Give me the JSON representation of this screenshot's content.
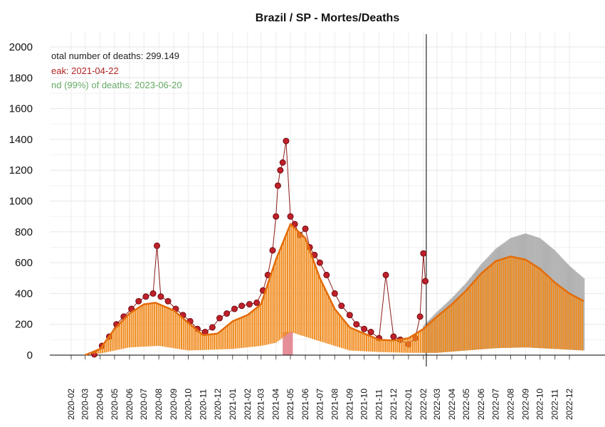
{
  "chart_data": {
    "type": "line",
    "title": "Brazil / SP - Mortes/Deaths",
    "xlabel": "",
    "ylabel": "",
    "ylim": [
      0,
      2000
    ],
    "yticks": [
      "0",
      "200",
      "400",
      "600",
      "800",
      "1000",
      "1200",
      "1400",
      "1600",
      "1800",
      "2000"
    ],
    "xticks": [
      "2020-02",
      "2020-03",
      "2020-04",
      "2020-05",
      "2020-06",
      "2020-07",
      "2020-08",
      "2020-09",
      "2020-10",
      "2020-11",
      "2020-12",
      "2021-01",
      "2021-02",
      "2021-03",
      "2021-04",
      "2021-05",
      "2021-06",
      "2021-07",
      "2021-08",
      "2021-09",
      "2021-10",
      "2021-11",
      "2021-12",
      "2022-01",
      "2022-02",
      "2022-03",
      "2022-04",
      "2022-05",
      "2022-06",
      "2022-07",
      "2022-08",
      "2022-09",
      "2022-10",
      "2022-11",
      "2022-12"
    ],
    "grid": true,
    "annotations": {
      "total": "otal number of deaths: 299.149",
      "peak": "eak: 2021-04-22",
      "end": "nd (99%) of deaths: 2023-06-20"
    },
    "today_marker": "2022-02-07",
    "peak_band": [
      "2021-04-15",
      "2021-05-06"
    ],
    "fitted_curve": {
      "x": [
        "2020-03-01",
        "2020-04-01",
        "2020-05-01",
        "2020-06-01",
        "2020-07-01",
        "2020-07-25",
        "2020-09-01",
        "2020-10-01",
        "2020-11-01",
        "2020-12-01",
        "2021-01-01",
        "2021-02-01",
        "2021-03-01",
        "2021-04-01",
        "2021-05-01",
        "2021-06-01",
        "2021-07-01",
        "2021-08-01",
        "2021-09-01",
        "2021-10-01",
        "2021-11-01",
        "2021-12-01",
        "2022-01-01",
        "2022-02-01",
        "2022-03-01",
        "2022-04-01",
        "2022-05-01",
        "2022-06-01",
        "2022-07-01",
        "2022-08-01",
        "2022-09-01",
        "2022-10-01",
        "2022-11-01",
        "2022-12-01",
        "2022-12-31"
      ],
      "y": [
        0,
        40,
        170,
        270,
        330,
        340,
        290,
        210,
        130,
        140,
        220,
        260,
        330,
        620,
        850,
        760,
        500,
        300,
        180,
        140,
        100,
        95,
        110,
        170,
        250,
        330,
        420,
        530,
        610,
        640,
        620,
        560,
        470,
        400,
        350
      ]
    },
    "band_upper": {
      "x": [
        "2022-02-01",
        "2022-03-01",
        "2022-04-01",
        "2022-05-01",
        "2022-06-01",
        "2022-07-01",
        "2022-08-01",
        "2022-09-01",
        "2022-10-01",
        "2022-11-01",
        "2022-12-01",
        "2022-12-31"
      ],
      "y": [
        190,
        280,
        370,
        470,
        590,
        690,
        760,
        790,
        760,
        680,
        580,
        500
      ]
    },
    "band_lower": {
      "x": [
        "2020-04-01",
        "2020-06-01",
        "2020-08-01",
        "2020-10-01",
        "2021-01-01",
        "2021-03-01",
        "2021-04-01",
        "2021-05-01",
        "2021-07-01",
        "2021-09-01",
        "2021-11-01",
        "2022-01-01",
        "2022-03-01",
        "2022-05-01",
        "2022-07-01",
        "2022-09-01",
        "2022-11-01",
        "2022-12-31"
      ],
      "y": [
        10,
        50,
        60,
        30,
        40,
        60,
        80,
        150,
        90,
        30,
        20,
        15,
        15,
        30,
        45,
        50,
        40,
        30
      ]
    },
    "observed_deaths": {
      "x": [
        "2020-03-20",
        "2020-04-05",
        "2020-04-20",
        "2020-05-05",
        "2020-05-20",
        "2020-06-05",
        "2020-06-20",
        "2020-07-05",
        "2020-07-20",
        "2020-07-28",
        "2020-08-05",
        "2020-08-20",
        "2020-09-05",
        "2020-09-20",
        "2020-10-05",
        "2020-10-20",
        "2020-11-05",
        "2020-11-20",
        "2020-12-05",
        "2020-12-20",
        "2021-01-05",
        "2021-01-20",
        "2021-02-05",
        "2021-02-20",
        "2021-03-05",
        "2021-03-15",
        "2021-03-25",
        "2021-04-01",
        "2021-04-05",
        "2021-04-10",
        "2021-04-15",
        "2021-04-22",
        "2021-05-01",
        "2021-05-10",
        "2021-05-20",
        "2021-06-01",
        "2021-06-10",
        "2021-06-20",
        "2021-07-01",
        "2021-07-15",
        "2021-08-01",
        "2021-08-15",
        "2021-09-01",
        "2021-09-15",
        "2021-10-01",
        "2021-10-15",
        "2021-11-01",
        "2021-11-15",
        "2021-12-01",
        "2021-12-15",
        "2022-01-01",
        "2022-01-15",
        "2022-01-25",
        "2022-02-01",
        "2022-02-05"
      ],
      "y": [
        5,
        60,
        120,
        200,
        250,
        300,
        350,
        380,
        400,
        710,
        380,
        350,
        300,
        260,
        220,
        170,
        150,
        180,
        240,
        270,
        300,
        320,
        330,
        340,
        420,
        520,
        680,
        900,
        1100,
        1200,
        1250,
        1390,
        900,
        850,
        780,
        820,
        700,
        650,
        600,
        520,
        400,
        320,
        260,
        200,
        170,
        150,
        110,
        520,
        120,
        100,
        70,
        110,
        250,
        660,
        480
      ]
    }
  }
}
